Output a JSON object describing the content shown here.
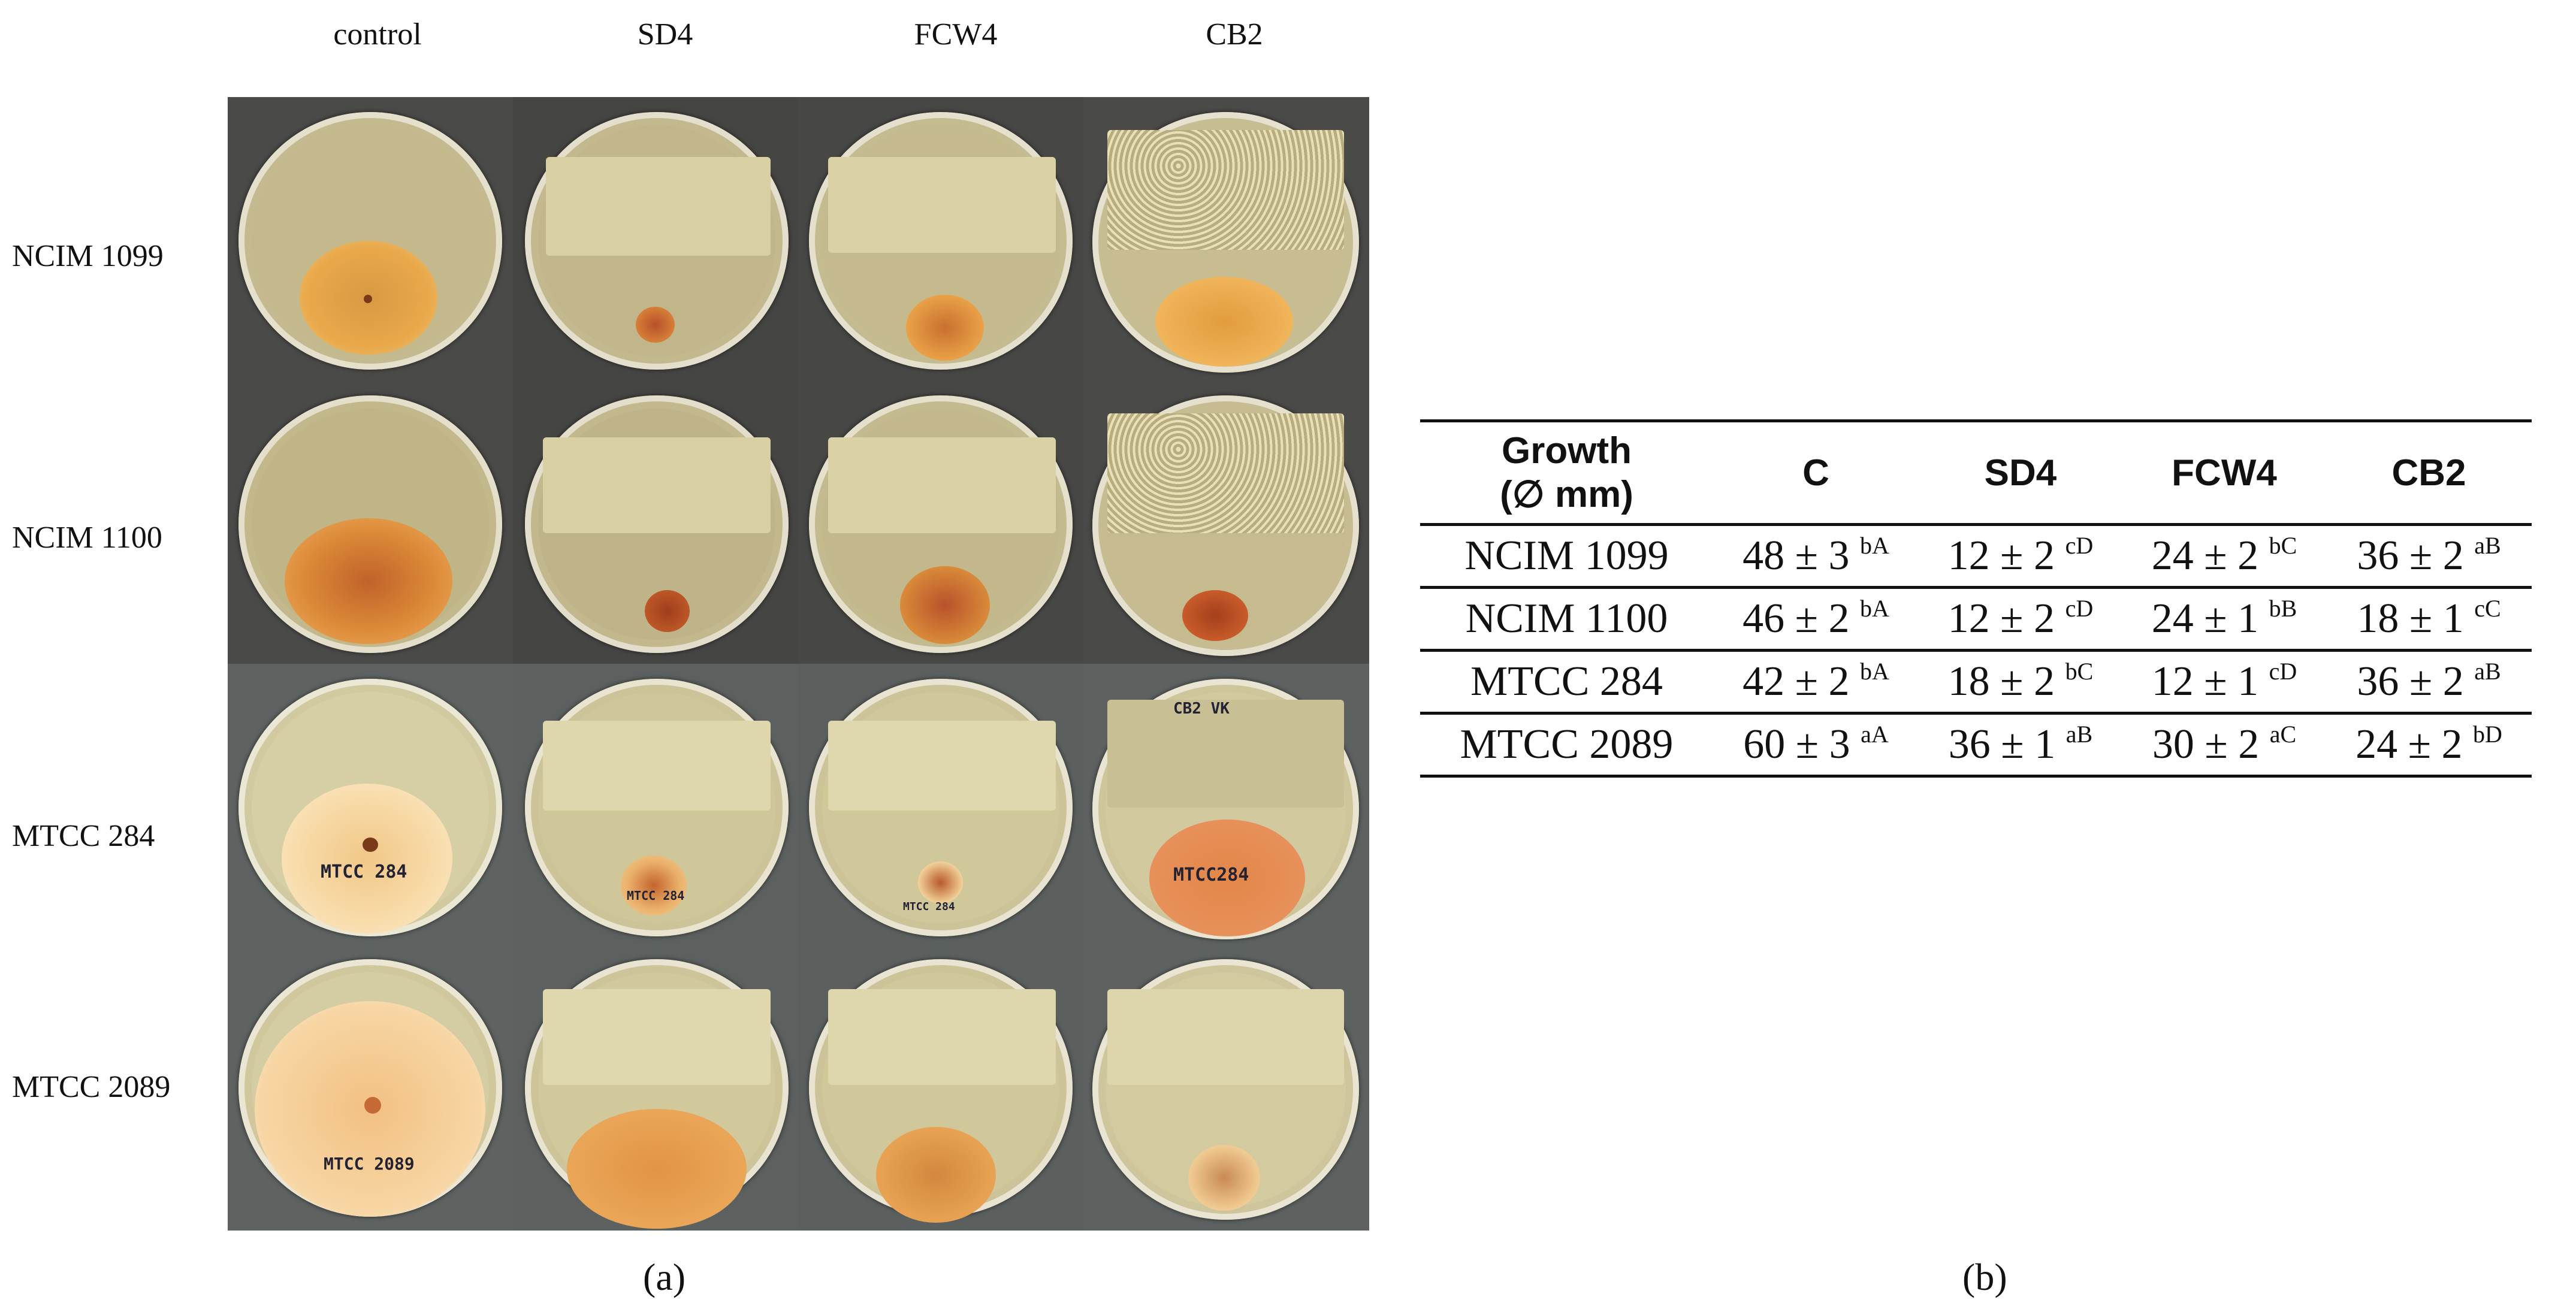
{
  "figure_a": {
    "column_headers": [
      "control",
      "SD4",
      "FCW4",
      "CB2"
    ],
    "row_headers": [
      "NCIM 1099",
      "NCIM 1100",
      "MTCC 284",
      "MTCC 2089"
    ],
    "plate_labels": {
      "mtcc284_control": "MTCC 284",
      "mtcc284_sd4": "MTCC 284",
      "mtcc284_fcw4": "MTCC 284",
      "mtcc284_cb2": "MTCC284",
      "mtcc284_cb2_top": "CB2 VK",
      "mtcc2089_control": "MTCC 2089"
    },
    "caption": "(a)"
  },
  "figure_b": {
    "header": {
      "growth_line1": "Growth",
      "growth_line2": "(∅ mm)",
      "c": "C",
      "sd4": "SD4",
      "fcw4": "FCW4",
      "cb2": "CB2"
    },
    "rows": [
      {
        "name": "NCIM 1099",
        "c": "48 ± 3",
        "c_sup": "bA",
        "sd4": "12 ± 2",
        "sd4_sup": "cD",
        "fcw4": "24 ± 2",
        "fcw4_sup": "bC",
        "cb2": "36 ± 2",
        "cb2_sup": "aB"
      },
      {
        "name": "NCIM 1100",
        "c": "46 ± 2",
        "c_sup": "bA",
        "sd4": "12 ± 2",
        "sd4_sup": "cD",
        "fcw4": "24 ± 1",
        "fcw4_sup": "bB",
        "cb2": "18 ± 1",
        "cb2_sup": "cC"
      },
      {
        "name": "MTCC 284",
        "c": "42 ± 2",
        "c_sup": "bA",
        "sd4": "18 ± 2",
        "sd4_sup": "bC",
        "fcw4": "12 ± 1",
        "fcw4_sup": "cD",
        "cb2": "36 ± 2",
        "cb2_sup": "aB"
      },
      {
        "name": "MTCC 2089",
        "c": "60 ± 3",
        "c_sup": "aA",
        "sd4": "36 ± 1",
        "sd4_sup": "aB",
        "fcw4": "30 ± 2",
        "fcw4_sup": "aC",
        "cb2": "24 ± 2",
        "cb2_sup": "bD"
      }
    ],
    "caption": "(b)"
  },
  "colors": {
    "agar": "#c9bf8f",
    "colony_orange": "#e49a3a",
    "colony_dark": "#c0622a",
    "streak": "#ddd2a4",
    "grid_bg": "#3a3a3a"
  }
}
